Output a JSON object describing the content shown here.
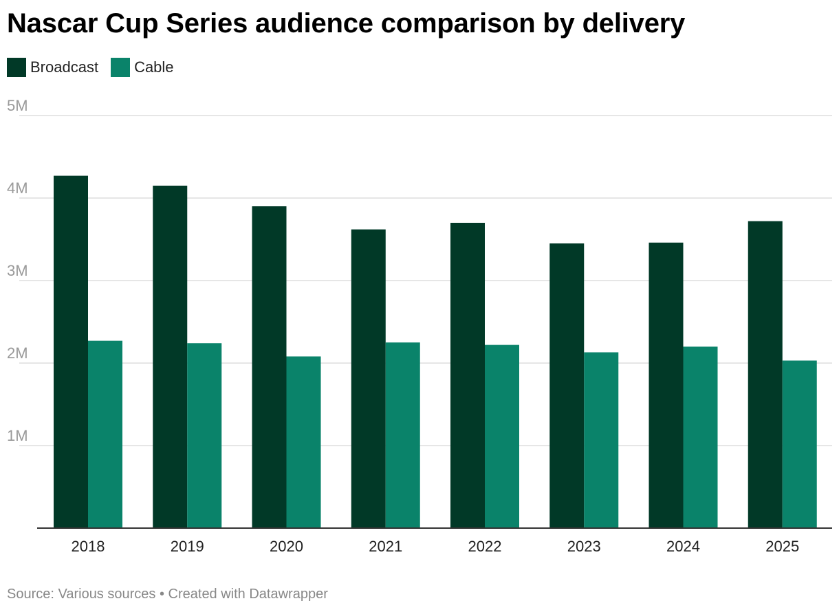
{
  "title": "Nascar Cup Series audience comparison by delivery",
  "legend": {
    "items": [
      {
        "label": "Broadcast",
        "color": "#013927"
      },
      {
        "label": "Cable",
        "color": "#0a836a"
      }
    ]
  },
  "footer": {
    "source_label": "Source: Various sources",
    "separator": " • ",
    "credit": "Created with Datawrapper"
  },
  "chart_data": {
    "type": "bar",
    "categories": [
      "2018",
      "2019",
      "2020",
      "2021",
      "2022",
      "2023",
      "2024",
      "2025"
    ],
    "series": [
      {
        "name": "Broadcast",
        "color": "#013927",
        "values": [
          4.27,
          4.15,
          3.9,
          3.62,
          3.7,
          3.45,
          3.46,
          3.72
        ]
      },
      {
        "name": "Cable",
        "color": "#0a836a",
        "values": [
          2.27,
          2.24,
          2.08,
          2.25,
          2.22,
          2.13,
          2.2,
          2.03
        ]
      }
    ],
    "ylim": [
      0,
      5
    ],
    "yticks": [
      1,
      2,
      3,
      4,
      5
    ],
    "ytick_labels": [
      "1M",
      "2M",
      "3M",
      "4M",
      "5M"
    ],
    "xlabel": "",
    "ylabel": "",
    "grid": true,
    "legend_position": "top-left"
  }
}
